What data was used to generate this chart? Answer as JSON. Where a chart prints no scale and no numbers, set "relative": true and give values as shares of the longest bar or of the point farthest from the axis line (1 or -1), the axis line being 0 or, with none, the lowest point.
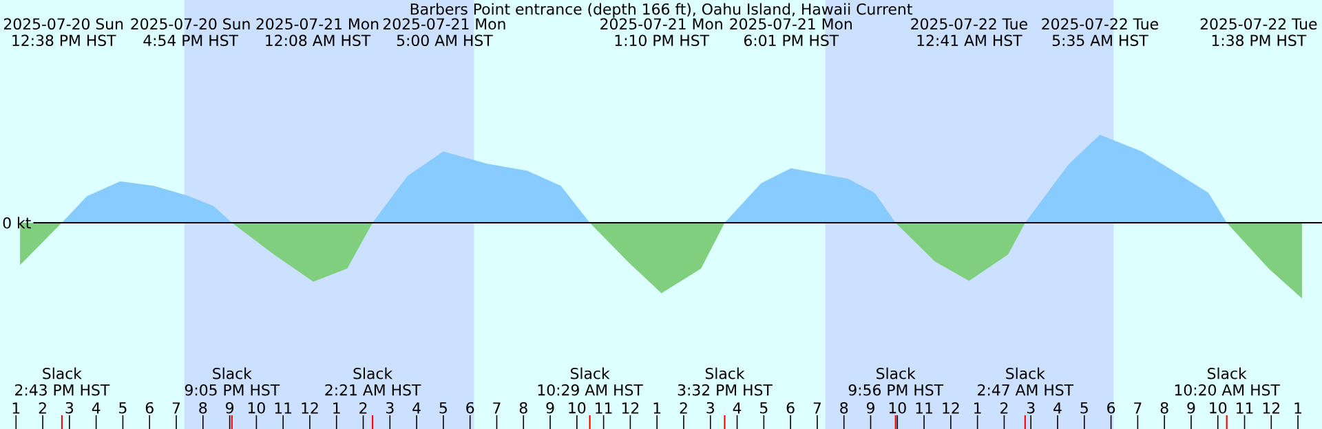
{
  "chart_data": {
    "type": "area",
    "relative": true,
    "title": "Barbers Point entrance (depth 166 ft), Oahu Island, Hawaii Current",
    "x": [
      "2025-07-20T13:09",
      "2025-07-20T14:43",
      "2025-07-20T15:39",
      "2025-07-20T16:54",
      "2025-07-20T18:09",
      "2025-07-20T19:24",
      "2025-07-20T20:24",
      "2025-07-20T21:05",
      "2025-07-20T22:39",
      "2025-07-21T00:08",
      "2025-07-21T01:24",
      "2025-07-21T02:21",
      "2025-07-21T03:39",
      "2025-07-21T05:00",
      "2025-07-21T06:39",
      "2025-07-21T08:09",
      "2025-07-21T09:24",
      "2025-07-21T10:29",
      "2025-07-21T11:54",
      "2025-07-21T13:10",
      "2025-07-21T14:39",
      "2025-07-21T15:32",
      "2025-07-21T16:54",
      "2025-07-21T18:01",
      "2025-07-21T20:09",
      "2025-07-21T21:09",
      "2025-07-21T21:56",
      "2025-07-21T23:24",
      "2025-07-22T00:41",
      "2025-07-22T02:09",
      "2025-07-22T02:47",
      "2025-07-22T04:24",
      "2025-07-22T05:35",
      "2025-07-22T07:09",
      "2025-07-22T08:39",
      "2025-07-22T09:39",
      "2025-07-22T10:20",
      "2025-07-22T11:54",
      "2025-07-22T13:09"
    ],
    "series": [
      {
        "color": "#88ccff",
        "values": [
          null,
          0,
          0.3,
          0.47,
          0.42,
          0.31,
          0.19,
          0,
          null,
          null,
          null,
          0,
          0.53,
          0.81,
          0.67,
          0.59,
          0.42,
          0,
          null,
          null,
          null,
          0,
          0.45,
          0.62,
          0.5,
          0.34,
          0,
          null,
          null,
          null,
          0,
          0.66,
          1,
          0.81,
          0.53,
          0.34,
          0,
          null,
          null
        ]
      },
      {
        "color": "#7fcf7f",
        "values": [
          -0.48,
          0,
          null,
          null,
          null,
          null,
          null,
          0,
          -0.36,
          -0.67,
          -0.52,
          0,
          null,
          null,
          null,
          null,
          null,
          0,
          -0.44,
          -0.8,
          -0.52,
          0,
          null,
          null,
          null,
          null,
          0,
          -0.44,
          -0.66,
          -0.36,
          0,
          null,
          null,
          null,
          null,
          null,
          0,
          -0.52,
          -0.86
        ]
      }
    ],
    "xlim": [
      "2025-07-20T12:24",
      "2025-07-22T13:54"
    ],
    "xticks": [
      {
        "value": "2025-07-20T13:00",
        "label": "1"
      },
      {
        "value": "2025-07-20T14:00",
        "label": "2"
      },
      {
        "value": "2025-07-20T15:00",
        "label": "3"
      },
      {
        "value": "2025-07-20T16:00",
        "label": "4"
      },
      {
        "value": "2025-07-20T17:00",
        "label": "5"
      },
      {
        "value": "2025-07-20T18:00",
        "label": "6"
      },
      {
        "value": "2025-07-20T19:00",
        "label": "7"
      },
      {
        "value": "2025-07-20T20:00",
        "label": "8"
      },
      {
        "value": "2025-07-20T21:00",
        "label": "9"
      },
      {
        "value": "2025-07-20T22:00",
        "label": "10"
      },
      {
        "value": "2025-07-20T23:00",
        "label": "11"
      },
      {
        "value": "2025-07-21T00:00",
        "label": "12"
      },
      {
        "value": "2025-07-21T01:00",
        "label": "1"
      },
      {
        "value": "2025-07-21T02:00",
        "label": "2"
      },
      {
        "value": "2025-07-21T03:00",
        "label": "3"
      },
      {
        "value": "2025-07-21T04:00",
        "label": "4"
      },
      {
        "value": "2025-07-21T05:00",
        "label": "5"
      },
      {
        "value": "2025-07-21T06:00",
        "label": "6"
      },
      {
        "value": "2025-07-21T07:00",
        "label": "7"
      },
      {
        "value": "2025-07-21T08:00",
        "label": "8"
      },
      {
        "value": "2025-07-21T09:00",
        "label": "9"
      },
      {
        "value": "2025-07-21T10:00",
        "label": "10"
      },
      {
        "value": "2025-07-21T11:00",
        "label": "11"
      },
      {
        "value": "2025-07-21T12:00",
        "label": "12"
      },
      {
        "value": "2025-07-21T13:00",
        "label": "1"
      },
      {
        "value": "2025-07-21T14:00",
        "label": "2"
      },
      {
        "value": "2025-07-21T15:00",
        "label": "3"
      },
      {
        "value": "2025-07-21T16:00",
        "label": "4"
      },
      {
        "value": "2025-07-21T17:00",
        "label": "5"
      },
      {
        "value": "2025-07-21T18:00",
        "label": "6"
      },
      {
        "value": "2025-07-21T19:00",
        "label": "7"
      },
      {
        "value": "2025-07-21T20:00",
        "label": "8"
      },
      {
        "value": "2025-07-21T21:00",
        "label": "9"
      },
      {
        "value": "2025-07-21T22:00",
        "label": "10"
      },
      {
        "value": "2025-07-21T23:00",
        "label": "11"
      },
      {
        "value": "2025-07-22T00:00",
        "label": "12"
      },
      {
        "value": "2025-07-22T01:00",
        "label": "1"
      },
      {
        "value": "2025-07-22T02:00",
        "label": "2"
      },
      {
        "value": "2025-07-22T03:00",
        "label": "3"
      },
      {
        "value": "2025-07-22T04:00",
        "label": "4"
      },
      {
        "value": "2025-07-22T05:00",
        "label": "5"
      },
      {
        "value": "2025-07-22T06:00",
        "label": "6"
      },
      {
        "value": "2025-07-22T07:00",
        "label": "7"
      },
      {
        "value": "2025-07-22T08:00",
        "label": "8"
      },
      {
        "value": "2025-07-22T09:00",
        "label": "9"
      },
      {
        "value": "2025-07-22T10:00",
        "label": "10"
      },
      {
        "value": "2025-07-22T11:00",
        "label": "11"
      },
      {
        "value": "2025-07-22T12:00",
        "label": "12"
      },
      {
        "value": "2025-07-22T13:00",
        "label": "1"
      }
    ],
    "tick_labels": "x",
    "bands": [
      {
        "axis": "x",
        "from": "2025-07-20T19:18",
        "to": "2025-07-21T06:09",
        "color": "#cce0ff"
      },
      {
        "axis": "x",
        "from": "2025-07-21T19:18",
        "to": "2025-07-22T06:06",
        "color": "#cce0ff"
      }
    ],
    "ref_lines": [
      {
        "axis": "y",
        "value": 0,
        "label": "0 kt",
        "color": "#000000"
      }
    ],
    "annotations": [
      "2025-07-20 Sun",
      "12:38 PM HST",
      "2025-07-20 Sun",
      "4:54 PM HST",
      "2025-07-21 Mon",
      "12:08 AM HST",
      "2025-07-21 Mon",
      "5:00 AM HST",
      "2025-07-21 Mon",
      "1:10 PM HST",
      "2025-07-21 Mon",
      "6:01 PM HST",
      "2025-07-22 Tue",
      "12:41 AM HST",
      "2025-07-22 Tue",
      "5:35 AM HST",
      "2025-07-22 Tue",
      "1:38 PM HST",
      "Slack",
      "2:43 PM HST",
      "Slack",
      "9:05 PM HST",
      "Slack",
      "2:21 AM HST",
      "Slack",
      "10:29 AM HST",
      "Slack",
      "3:32 PM HST",
      "Slack",
      "9:56 PM HST",
      "Slack",
      "2:47 AM HST",
      "Slack",
      "10:20 AM HST"
    ]
  }
}
